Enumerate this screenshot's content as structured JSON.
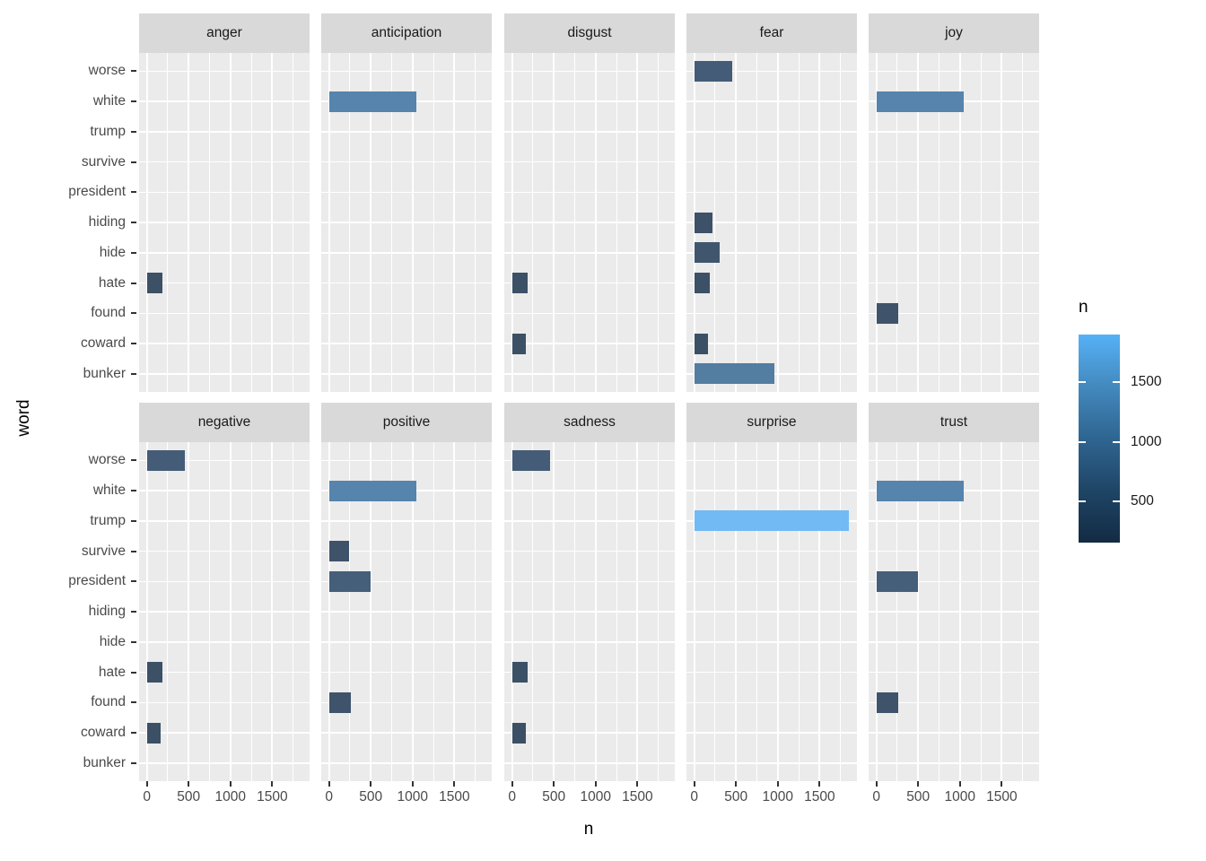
{
  "figure": {
    "background": "#FFFFFF",
    "panel_bg": "#EBEBEB",
    "strip_bg": "#D9D9D9",
    "grid_color": "#FFFFFF",
    "tick_color": "#333333",
    "axis_text_color": "#4A4A4A",
    "title_color": "#000000"
  },
  "chart_data": {
    "type": "bar",
    "orientation": "horizontal",
    "xlabel": "n",
    "ylabel": "word",
    "grid": true,
    "categories_top_to_bottom": [
      "worse",
      "white",
      "trump",
      "survive",
      "president",
      "hiding",
      "hide",
      "hate",
      "found",
      "coward",
      "bunker"
    ],
    "x_ticks": [
      0,
      500,
      1000,
      1500
    ],
    "x_domain": [
      -93,
      1947
    ],
    "facets": [
      {
        "name": "anger",
        "bars": [
          {
            "word": "hate",
            "n": 190
          }
        ]
      },
      {
        "name": "anticipation",
        "bars": [
          {
            "word": "white",
            "n": 1040
          }
        ]
      },
      {
        "name": "disgust",
        "bars": [
          {
            "word": "hate",
            "n": 190
          },
          {
            "word": "coward",
            "n": 170
          }
        ]
      },
      {
        "name": "fear",
        "bars": [
          {
            "word": "worse",
            "n": 460
          },
          {
            "word": "hiding",
            "n": 215
          },
          {
            "word": "hide",
            "n": 300
          },
          {
            "word": "hate",
            "n": 190
          },
          {
            "word": "coward",
            "n": 170
          },
          {
            "word": "bunker",
            "n": 960
          }
        ]
      },
      {
        "name": "joy",
        "bars": [
          {
            "word": "white",
            "n": 1040
          },
          {
            "word": "found",
            "n": 265
          }
        ]
      },
      {
        "name": "negative",
        "bars": [
          {
            "word": "worse",
            "n": 460
          },
          {
            "word": "hate",
            "n": 190
          },
          {
            "word": "coward",
            "n": 170
          }
        ]
      },
      {
        "name": "positive",
        "bars": [
          {
            "word": "white",
            "n": 1040
          },
          {
            "word": "survive",
            "n": 245
          },
          {
            "word": "president",
            "n": 500
          },
          {
            "word": "found",
            "n": 265
          }
        ]
      },
      {
        "name": "sadness",
        "bars": [
          {
            "word": "worse",
            "n": 460
          },
          {
            "word": "hate",
            "n": 190
          },
          {
            "word": "coward",
            "n": 170
          }
        ]
      },
      {
        "name": "surprise",
        "bars": [
          {
            "word": "trump",
            "n": 1850
          }
        ]
      },
      {
        "name": "trust",
        "bars": [
          {
            "word": "white",
            "n": 1040
          },
          {
            "word": "president",
            "n": 500
          },
          {
            "word": "found",
            "n": 265
          }
        ]
      }
    ],
    "legend": {
      "title": "n",
      "ticks": [
        1500,
        1000,
        500
      ],
      "domain": [
        154,
        1898
      ],
      "low_color": "#132B43",
      "high_color": "#56B1F7",
      "gradient_stops": [
        "#56B1F7",
        "#4389BE",
        "#2F6591",
        "#1F4566",
        "#132B43"
      ]
    },
    "color_anchors": [
      [
        170,
        "#3B4F65"
      ],
      [
        300,
        "#40566D"
      ],
      [
        500,
        "#455E79"
      ],
      [
        960,
        "#537DA1"
      ],
      [
        1040,
        "#5684AC"
      ],
      [
        1850,
        "#72BAF3"
      ]
    ]
  }
}
